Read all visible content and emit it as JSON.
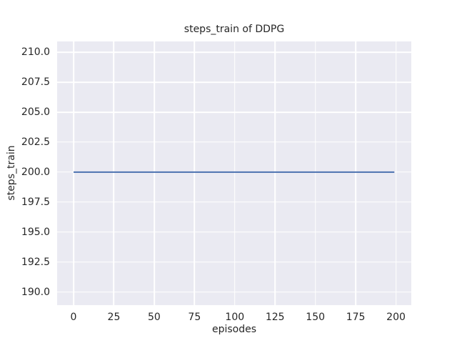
{
  "chart_data": {
    "type": "line",
    "title": "steps_train of DDPG",
    "xlabel": "episodes",
    "ylabel": "steps_train",
    "xlim": [
      -10.2,
      209.5
    ],
    "ylim": [
      188.9,
      210.9
    ],
    "xticks": {
      "values": [
        0,
        25,
        50,
        75,
        100,
        125,
        150,
        175,
        200
      ],
      "labels": [
        "0",
        "25",
        "50",
        "75",
        "100",
        "125",
        "150",
        "175",
        "200"
      ]
    },
    "yticks": {
      "values": [
        190.0,
        192.5,
        195.0,
        197.5,
        200.0,
        202.5,
        205.0,
        207.5,
        210.0
      ],
      "labels": [
        "190.0",
        "192.5",
        "195.0",
        "197.5",
        "200.0",
        "202.5",
        "205.0",
        "207.5",
        "210.0"
      ]
    },
    "grid": true,
    "legend": false,
    "series": [
      {
        "name": "steps_train",
        "color": "#4c72b0",
        "line_width": 2,
        "points": [
          [
            0,
            200
          ],
          [
            199,
            200
          ]
        ]
      }
    ],
    "colors": {
      "figure_background": "#ffffff",
      "axes_background": "#eaeaf2",
      "grid": "#ffffff",
      "text": "#262626"
    }
  }
}
